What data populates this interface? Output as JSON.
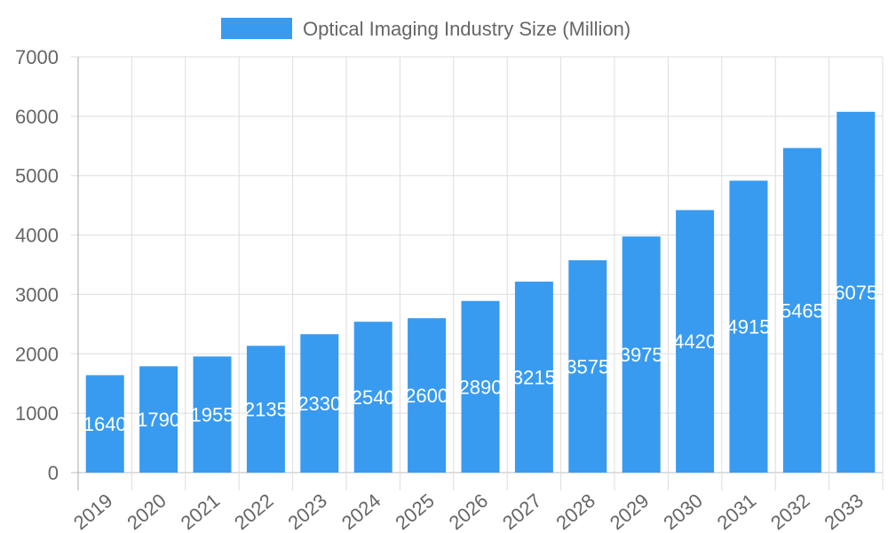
{
  "chart_data": {
    "type": "bar",
    "title": "",
    "xlabel": "",
    "ylabel": "",
    "legend": {
      "position": "top",
      "entries": [
        "Optical Imaging Industry Size (Million)"
      ]
    },
    "categories": [
      "2019",
      "2020",
      "2021",
      "2022",
      "2023",
      "2024",
      "2025",
      "2026",
      "2027",
      "2028",
      "2029",
      "2030",
      "2031",
      "2032",
      "2033"
    ],
    "series": [
      {
        "name": "Optical Imaging Industry Size (Million)",
        "values": [
          1640,
          1790,
          1955,
          2135,
          2330,
          2540,
          2600,
          2890,
          3215,
          3575,
          3975,
          4420,
          4915,
          5465,
          6075
        ],
        "color": "#389bf0"
      }
    ],
    "ylim": [
      0,
      7000
    ],
    "yticks": [
      0,
      1000,
      2000,
      3000,
      4000,
      5000,
      6000,
      7000
    ],
    "grid": true,
    "data_labels": true
  }
}
